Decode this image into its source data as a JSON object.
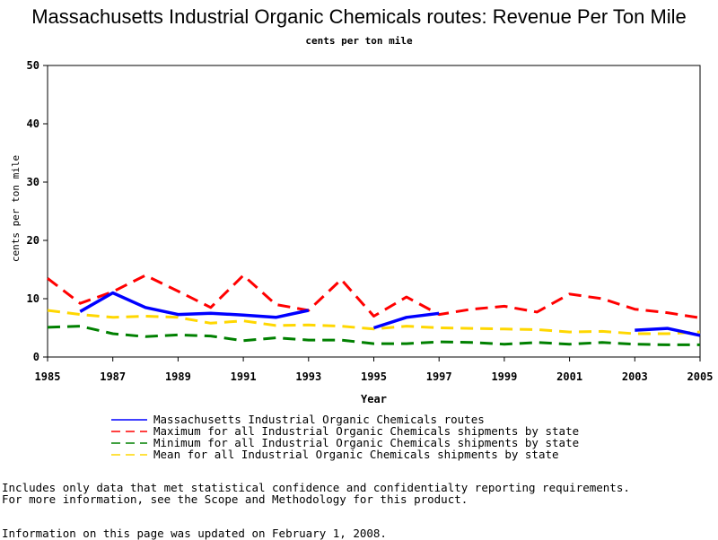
{
  "chart_data": {
    "type": "line",
    "title": "Massachusetts Industrial Organic Chemicals routes: Revenue Per Ton Mile",
    "subtitle": "cents per ton mile",
    "xlabel": "Year",
    "ylabel": "cents per ton mile",
    "xlim": [
      1985,
      2005
    ],
    "ylim": [
      0,
      50
    ],
    "x_ticks": [
      "1985",
      "1987",
      "1989",
      "1991",
      "1993",
      "1995",
      "1997",
      "1999",
      "2001",
      "2003",
      "2005"
    ],
    "y_ticks": [
      "0",
      "10",
      "20",
      "30",
      "40",
      "50"
    ],
    "x": [
      1985,
      1986,
      1987,
      1988,
      1989,
      1990,
      1991,
      1992,
      1993,
      1994,
      1995,
      1996,
      1997,
      1998,
      1999,
      2000,
      2001,
      2002,
      2003,
      2004,
      2005
    ],
    "series": [
      {
        "name": "Massachusetts Industrial Organic Chemicals routes",
        "color": "#0000ff",
        "style": "solid",
        "values": [
          null,
          7.8,
          11.0,
          8.5,
          7.3,
          7.5,
          7.2,
          6.8,
          8.0,
          null,
          5.0,
          6.8,
          7.5,
          null,
          null,
          null,
          null,
          null,
          4.6,
          4.9,
          3.7
        ]
      },
      {
        "name": "Maximum for all Industrial Organic Chemicals shipments by state",
        "color": "#ff0000",
        "style": "dashed",
        "values": [
          13.5,
          9.2,
          11.2,
          14.0,
          11.3,
          8.5,
          14.0,
          9.0,
          8.0,
          13.3,
          7.0,
          10.3,
          7.3,
          8.2,
          8.7,
          7.7,
          10.8,
          10.0,
          8.2,
          7.6,
          6.7
        ]
      },
      {
        "name": "Minimum for all Industrial Organic Chemicals shipments by state",
        "color": "#008000",
        "style": "dashed",
        "values": [
          5.1,
          5.3,
          4.0,
          3.5,
          3.8,
          3.6,
          2.8,
          3.3,
          2.9,
          2.9,
          2.3,
          2.3,
          2.6,
          2.5,
          2.2,
          2.5,
          2.2,
          2.5,
          2.2,
          2.1,
          2.1
        ]
      },
      {
        "name": "Mean for all Industrial Organic Chemicals shipments by state",
        "color": "#ffd700",
        "style": "dashed",
        "values": [
          8.0,
          7.3,
          6.8,
          7.0,
          6.8,
          5.8,
          6.2,
          5.4,
          5.5,
          5.3,
          4.8,
          5.3,
          5.0,
          4.9,
          4.8,
          4.7,
          4.3,
          4.4,
          4.0,
          4.0,
          4.3
        ]
      }
    ],
    "grid": false,
    "legend": "bottom"
  },
  "notes": {
    "line1": "Includes only data that met statistical confidence and confidentialty reporting requirements.",
    "line2": "For more information, see the Scope and Methodology for this product.",
    "updated": "Information on this page was updated on February 1, 2008."
  }
}
